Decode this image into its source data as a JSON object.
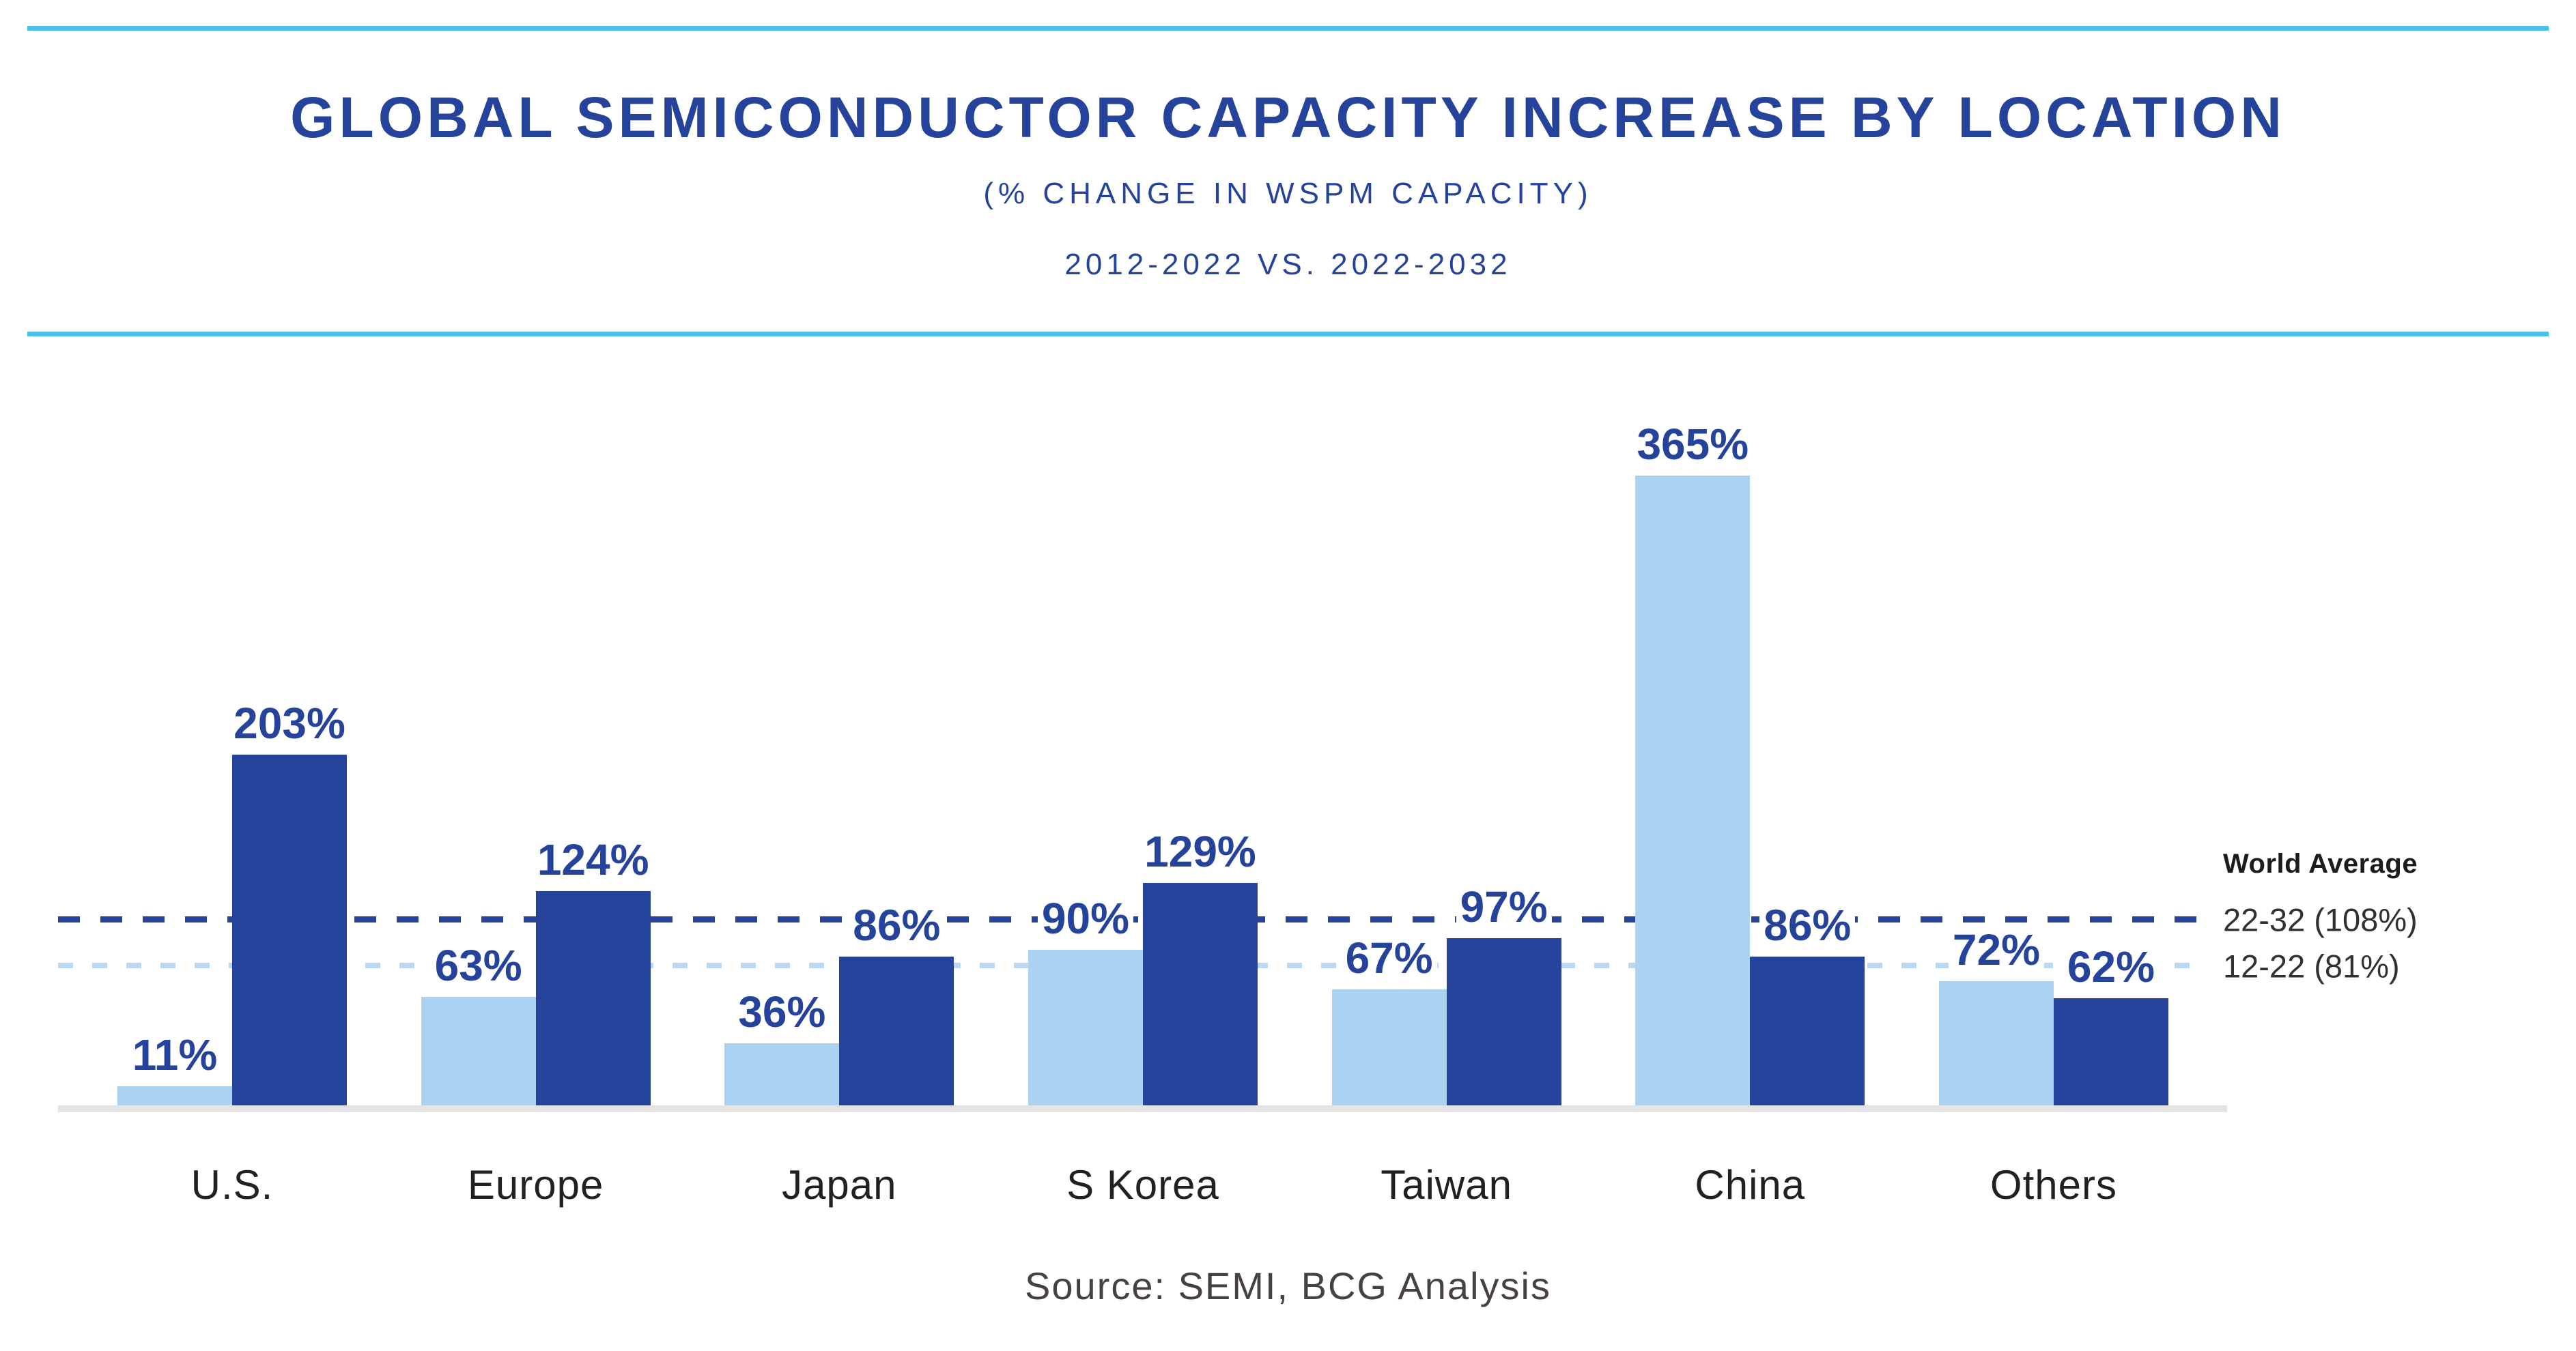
{
  "header": {
    "title": "GLOBAL SEMICONDUCTOR CAPACITY INCREASE BY LOCATION",
    "subtitle": "(% CHANGE IN WSPM CAPACITY)",
    "period": "2012-2022 VS. 2022-2032"
  },
  "chart_data": {
    "type": "bar",
    "title": "GLOBAL SEMICONDUCTOR CAPACITY INCREASE BY LOCATION",
    "subtitle": "(% CHANGE IN WSPM CAPACITY) 2012-2022 VS. 2022-2032",
    "categories": [
      "U.S.",
      "Europe",
      "Japan",
      "S Korea",
      "Taiwan",
      "China",
      "Others"
    ],
    "series": [
      {
        "name": "12-22",
        "color": "#ABD2F0",
        "values": [
          11,
          63,
          36,
          90,
          67,
          365,
          72
        ]
      },
      {
        "name": "22-32",
        "color": "#25439B",
        "values": [
          203,
          124,
          86,
          129,
          97,
          86,
          62
        ]
      }
    ],
    "value_suffix": "%",
    "xlabel": "",
    "ylabel": "% change in WSPM capacity",
    "ylim": [
      0,
      400
    ],
    "grid": false,
    "reference_lines": [
      {
        "label": "22-32 (108%)",
        "value": 108,
        "style": "dark"
      },
      {
        "label": "12-22 (81%)",
        "value": 81,
        "style": "light"
      }
    ],
    "legend_position": "right"
  },
  "world_average": {
    "title": "World Average",
    "lines": [
      {
        "label": "22-32 (108%)",
        "value": 108,
        "style": "dark"
      },
      {
        "label": "12-22 (81%)",
        "value": 81,
        "style": "light"
      }
    ]
  },
  "source": {
    "text": "Source: SEMI, BCG Analysis"
  },
  "colors": {
    "dark_blue": "#25439B",
    "light_blue": "#ABD2F0",
    "rule_cyan": "#4FC1E8",
    "baseline_gray": "#E4E4E4",
    "category_text": "#232021",
    "source_text": "#474142"
  }
}
